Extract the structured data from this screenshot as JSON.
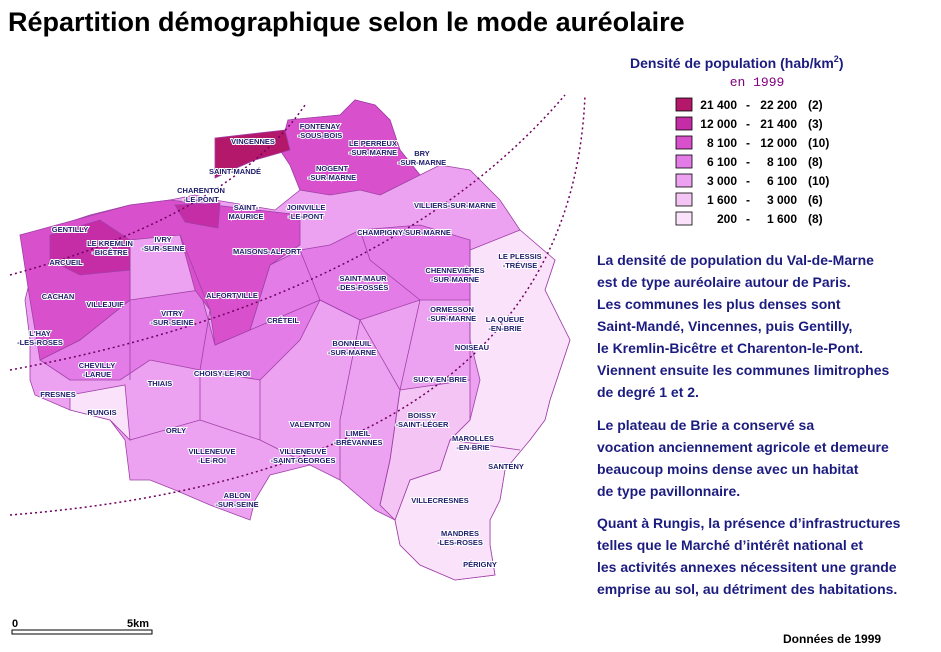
{
  "title": "Répartition démographique selon le mode auréolaire",
  "legend": {
    "title": "Densité de population (hab/km",
    "title_sup": "2",
    "title_end": ")",
    "subtitle": "en 1999",
    "separator": "-",
    "items": [
      {
        "color": "#b3186a",
        "from": "21 400",
        "to": "22 200",
        "count": "(2)"
      },
      {
        "color": "#c42da6",
        "from": "12 000",
        "to": "21 400",
        "count": "(3)"
      },
      {
        "color": "#d850cc",
        "from": "8 100",
        "to": "12 000",
        "count": "(10)"
      },
      {
        "color": "#e47ce8",
        "from": "6 100",
        "to": "8 100",
        "count": "(8)"
      },
      {
        "color": "#eca2f0",
        "from": "3 000",
        "to": "6 100",
        "count": "(10)"
      },
      {
        "color": "#f3c4f4",
        "from": "1 600",
        "to": "3 000",
        "count": "(6)"
      },
      {
        "color": "#fae2fa",
        "from": "200",
        "to": "1 600",
        "count": "(8)"
      }
    ]
  },
  "communes": [
    [
      "VINCENNES"
    ],
    [
      "SAINT-MANDÉ"
    ],
    [
      "FONTENAY",
      "-SOUS-BOIS"
    ],
    [
      "LE PERREUX",
      "-SUR-MARNE"
    ],
    [
      "BRY",
      "-SUR-MARNE"
    ],
    [
      "NOGENT",
      "-SUR-MARNE"
    ],
    [
      "CHARENTON",
      "-LE-PONT"
    ],
    [
      "SAINT-",
      "MAURICE"
    ],
    [
      "JOINVILLE",
      "-LE-PONT"
    ],
    [
      "VILLIERS-SUR-MARNE"
    ],
    [
      "GENTILLY"
    ],
    [
      "LE KREMLIN",
      "-BICÊTRE"
    ],
    [
      "IVRY",
      "-SUR-SEINE"
    ],
    [
      "MAISONS-ALFORT"
    ],
    [
      "CHAMPIGNY-SUR-MARNE"
    ],
    [
      "LE PLESSIS",
      "-TRÉVISE"
    ],
    [
      "ARCUEIL"
    ],
    [
      "CHENNEVIÈRES",
      "-SUR-MARNE"
    ],
    [
      "SAINT-MAUR",
      "-DES-FOSSÉS"
    ],
    [
      "CACHAN"
    ],
    [
      "VILLEJUIF"
    ],
    [
      "ALFORTVILLE"
    ],
    [
      "VITRY",
      "-SUR-SEINE"
    ],
    [
      "CRÉTEIL"
    ],
    [
      "ORMESSON",
      "-SUR-MARNE"
    ],
    [
      "LA QUEUE",
      "-EN-BRIE"
    ],
    [
      "L'HAY",
      "-LES-ROSES"
    ],
    [
      "BONNEUIL",
      "-SUR-MARNE"
    ],
    [
      "NOISEAU"
    ],
    [
      "CHEVILLY",
      "-LARUE"
    ],
    [
      "THIAIS"
    ],
    [
      "CHOISY-LE-ROI"
    ],
    [
      "SUCY-EN-BRIE"
    ],
    [
      "FRESNES"
    ],
    [
      "RUNGIS"
    ],
    [
      "BOISSY",
      "-SAINT-LÉGER"
    ],
    [
      "VALENTON"
    ],
    [
      "LIMEIL",
      "-BRÉVANNES"
    ],
    [
      "ORLY"
    ],
    [
      "MAROLLES",
      "-EN-BRIE"
    ],
    [
      "VILLENEUVE",
      "-LE-ROI"
    ],
    [
      "VILLENEUVE",
      "-SAINT-GEORGES"
    ],
    [
      "SANTENY"
    ],
    [
      "ABLON",
      "-SUR-SEINE"
    ],
    [
      "VILLECRESNES"
    ],
    [
      "MANDRES",
      "-LES-ROSES"
    ],
    [
      "PÉRIGNY"
    ]
  ],
  "paragraphs": [
    [
      "La densité de population du Val-de-Marne",
      "est de type auréolaire autour de Paris.",
      "Les communes les plus denses sont",
      "Saint-Mandé, Vincennes, puis Gentilly,",
      "le Kremlin-Bicêtre et Charenton-le-Pont.",
      "Viennent ensuite les communes limitrophes",
      "de degré 1 et 2."
    ],
    [
      "Le plateau de Brie a conservé sa",
      "vocation anciennement agricole et demeure",
      "beaucoup moins dense avec un habitat",
      "de type pavillonnaire."
    ],
    [
      "Quant à Rungis, la présence d’infrastructures",
      "telles que le Marché d’intérêt national et",
      "les activités annexes nécessitent une grande",
      "emprise au sol, au détriment des habitations."
    ]
  ],
  "scale": {
    "start": "0",
    "end": "5km"
  },
  "source": "Données de 1999"
}
